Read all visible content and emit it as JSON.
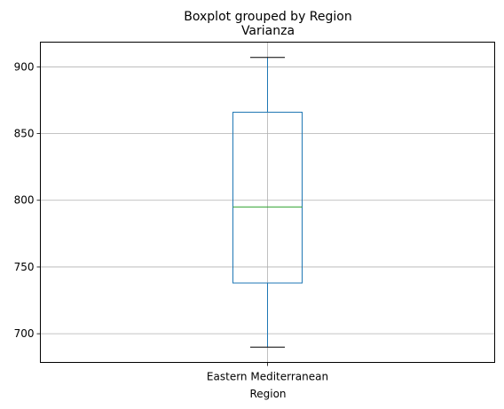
{
  "chart_data": {
    "type": "box",
    "suptitle": "Boxplot grouped by Region",
    "title": "Varianza",
    "xlabel": "Region",
    "ylabel": "",
    "categories": [
      "Eastern Mediterranean"
    ],
    "boxes": [
      {
        "category": "Eastern Mediterranean",
        "whisker_low": 690,
        "q1": 738,
        "median": 795,
        "q3": 866,
        "whisker_high": 907
      }
    ],
    "ylim": [
      678.5,
      918.5
    ],
    "yticks": [
      700,
      750,
      800,
      850,
      900
    ],
    "grid": true,
    "colors": {
      "box": "#1f77b4",
      "median": "#2ca02c",
      "whisker": "#1f77b4",
      "cap": "#000000",
      "grid": "#b0b0b0"
    }
  }
}
